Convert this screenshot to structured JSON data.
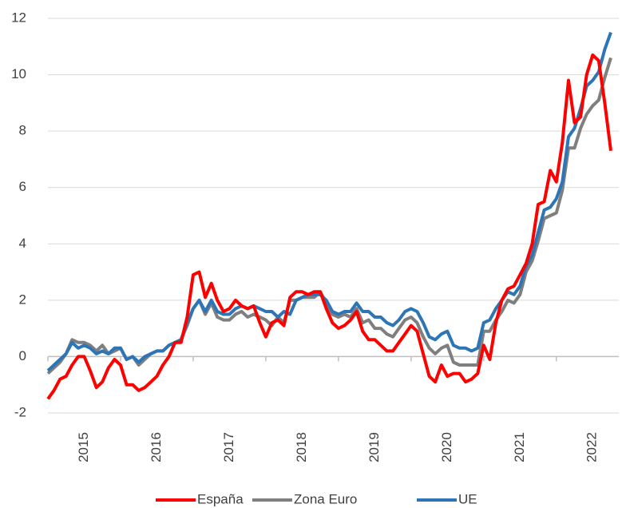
{
  "chart_data": {
    "type": "line",
    "x": [
      2015,
      2015.083,
      2015.167,
      2015.25,
      2015.333,
      2015.417,
      2015.5,
      2015.583,
      2015.667,
      2015.75,
      2015.833,
      2015.917,
      2016,
      2016.083,
      2016.167,
      2016.25,
      2016.333,
      2016.417,
      2016.5,
      2016.583,
      2016.667,
      2016.75,
      2016.833,
      2016.917,
      2017,
      2017.083,
      2017.167,
      2017.25,
      2017.333,
      2017.417,
      2017.5,
      2017.583,
      2017.667,
      2017.75,
      2017.833,
      2017.917,
      2018,
      2018.083,
      2018.167,
      2018.25,
      2018.333,
      2018.417,
      2018.5,
      2018.583,
      2018.667,
      2018.75,
      2018.833,
      2018.917,
      2019,
      2019.083,
      2019.167,
      2019.25,
      2019.333,
      2019.417,
      2019.5,
      2019.583,
      2019.667,
      2019.75,
      2019.833,
      2019.917,
      2020,
      2020.083,
      2020.167,
      2020.25,
      2020.333,
      2020.417,
      2020.5,
      2020.583,
      2020.667,
      2020.75,
      2020.833,
      2020.917,
      2021,
      2021.083,
      2021.167,
      2021.25,
      2021.333,
      2021.417,
      2021.5,
      2021.583,
      2021.667,
      2021.75,
      2021.833,
      2021.917,
      2022,
      2022.083,
      2022.167,
      2022.25,
      2022.333,
      2022.417,
      2022.5,
      2022.583,
      2022.667,
      2022.75
    ],
    "series": [
      {
        "name": "España",
        "color": "#ff0000",
        "values": [
          -1.5,
          -1.2,
          -0.8,
          -0.7,
          -0.3,
          0.0,
          0.0,
          -0.5,
          -1.1,
          -0.9,
          -0.4,
          -0.1,
          -0.3,
          -1.0,
          -1.0,
          -1.2,
          -1.1,
          -0.9,
          -0.7,
          -0.3,
          0.0,
          0.5,
          0.5,
          1.4,
          2.9,
          3.0,
          2.1,
          2.6,
          2.0,
          1.6,
          1.7,
          2.0,
          1.8,
          1.7,
          1.8,
          1.2,
          0.7,
          1.2,
          1.3,
          1.1,
          2.1,
          2.3,
          2.3,
          2.2,
          2.3,
          2.3,
          1.7,
          1.2,
          1.0,
          1.1,
          1.3,
          1.6,
          0.9,
          0.6,
          0.6,
          0.4,
          0.2,
          0.2,
          0.5,
          0.8,
          1.1,
          0.9,
          0.1,
          -0.7,
          -0.9,
          -0.3,
          -0.7,
          -0.6,
          -0.6,
          -0.9,
          -0.8,
          -0.6,
          0.4,
          -0.1,
          1.2,
          2.0,
          2.4,
          2.5,
          2.9,
          3.3,
          4.0,
          5.4,
          5.5,
          6.6,
          6.2,
          7.6,
          9.8,
          8.3,
          8.5,
          10.0,
          10.7,
          10.5,
          9.0,
          7.3
        ]
      },
      {
        "name": "Zona Euro",
        "color": "#7f7f7f",
        "values": [
          -0.6,
          -0.4,
          -0.2,
          0.1,
          0.6,
          0.5,
          0.5,
          0.4,
          0.2,
          0.4,
          0.1,
          0.2,
          0.3,
          -0.1,
          0.0,
          -0.3,
          -0.1,
          0.1,
          0.2,
          0.2,
          0.4,
          0.5,
          0.6,
          1.1,
          1.7,
          2.0,
          1.5,
          1.9,
          1.4,
          1.3,
          1.3,
          1.5,
          1.6,
          1.4,
          1.5,
          1.4,
          1.3,
          1.1,
          1.4,
          1.2,
          2.0,
          2.0,
          2.1,
          2.1,
          2.1,
          2.3,
          1.9,
          1.5,
          1.4,
          1.5,
          1.4,
          1.7,
          1.2,
          1.3,
          1.0,
          1.0,
          0.8,
          0.7,
          1.0,
          1.3,
          1.4,
          1.2,
          0.7,
          0.3,
          0.1,
          0.3,
          0.4,
          -0.2,
          -0.3,
          -0.3,
          -0.3,
          -0.3,
          0.9,
          0.9,
          1.3,
          1.6,
          2.0,
          1.9,
          2.2,
          3.0,
          3.4,
          4.1,
          4.9,
          5.0,
          5.1,
          5.9,
          7.4,
          7.4,
          8.1,
          8.6,
          8.9,
          9.1,
          9.9,
          10.6
        ]
      },
      {
        "name": "UE",
        "color": "#2e75b6",
        "values": [
          -0.5,
          -0.3,
          -0.1,
          0.1,
          0.5,
          0.3,
          0.4,
          0.3,
          0.1,
          0.2,
          0.1,
          0.3,
          0.3,
          -0.1,
          0.0,
          -0.2,
          0.0,
          0.1,
          0.2,
          0.2,
          0.4,
          0.5,
          0.6,
          1.2,
          1.7,
          2.0,
          1.6,
          2.0,
          1.6,
          1.5,
          1.5,
          1.7,
          1.8,
          1.7,
          1.8,
          1.7,
          1.6,
          1.6,
          1.4,
          1.6,
          1.5,
          2.0,
          2.1,
          2.2,
          2.2,
          2.2,
          2.0,
          1.6,
          1.5,
          1.6,
          1.6,
          1.9,
          1.6,
          1.6,
          1.4,
          1.4,
          1.2,
          1.1,
          1.3,
          1.6,
          1.7,
          1.6,
          1.2,
          0.7,
          0.6,
          0.8,
          0.9,
          0.4,
          0.3,
          0.3,
          0.2,
          0.3,
          1.2,
          1.3,
          1.7,
          2.0,
          2.3,
          2.2,
          2.5,
          3.2,
          3.6,
          4.4,
          5.2,
          5.3,
          5.6,
          6.2,
          7.8,
          8.1,
          8.8,
          9.6,
          9.8,
          10.1,
          10.9,
          11.5
        ]
      }
    ],
    "xlim": [
      2015,
      2022.86
    ],
    "xticks": [
      {
        "value": 2015.5,
        "label": "2015"
      },
      {
        "value": 2016.5,
        "label": "2016"
      },
      {
        "value": 2017.5,
        "label": "2017"
      },
      {
        "value": 2018.5,
        "label": "2018"
      },
      {
        "value": 2019.5,
        "label": "2019"
      },
      {
        "value": 2020.5,
        "label": "2020"
      },
      {
        "value": 2021.5,
        "label": "2021"
      },
      {
        "value": 2022.5,
        "label": "2022"
      }
    ],
    "ylim": [
      -2,
      12
    ],
    "yticks": [
      -2,
      0,
      2,
      4,
      6,
      8,
      10,
      12
    ],
    "grid": true,
    "legend": "bottom"
  }
}
